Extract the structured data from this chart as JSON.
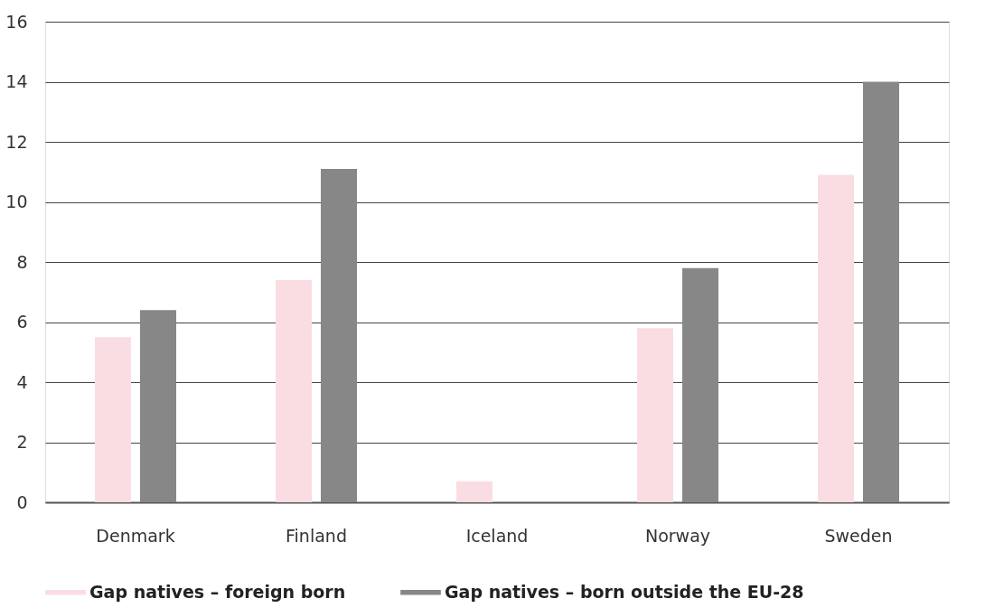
{
  "chart_data": {
    "type": "bar",
    "categories": [
      "Denmark",
      "Finland",
      "Iceland",
      "Norway",
      "Sweden"
    ],
    "series": [
      {
        "name": "Gap natives – foreign born",
        "color": "#fadde3",
        "values": [
          5.5,
          7.4,
          0.7,
          5.8,
          10.9
        ]
      },
      {
        "name": "Gap natives – born outside the EU-28",
        "color": "#878787",
        "values": [
          6.4,
          11.1,
          null,
          7.8,
          14.0
        ]
      }
    ],
    "ylim": [
      0,
      16
    ],
    "yticks": [
      0,
      2,
      4,
      6,
      8,
      10,
      12,
      14,
      16
    ],
    "grid": "y",
    "legend": "bottom"
  }
}
